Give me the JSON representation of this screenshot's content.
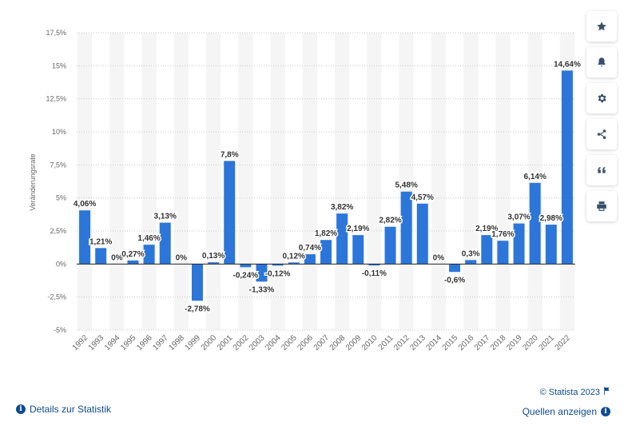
{
  "chart_data": {
    "type": "bar",
    "ylabel": "Veränderungsrate",
    "ylim": [
      -5,
      17.5
    ],
    "yticks": [
      -5,
      -2.5,
      0,
      2.5,
      5,
      7.5,
      10,
      12.5,
      15,
      17.5
    ],
    "ytick_labels": [
      "-5%",
      "-2,5%",
      "0%",
      "2,5%",
      "5%",
      "7,5%",
      "10%",
      "12,5%",
      "15%",
      "17,5%"
    ],
    "grid": true,
    "bar_color": "#2c76d9",
    "categories": [
      "1992",
      "1993",
      "1994",
      "1995",
      "1996",
      "1997",
      "1998",
      "1999",
      "2000",
      "2001",
      "2002",
      "2003",
      "2004",
      "2005",
      "2006",
      "2007",
      "2008",
      "2009",
      "2010",
      "2011",
      "2012",
      "2013",
      "2014",
      "2015",
      "2016",
      "2017",
      "2018",
      "2019",
      "2020",
      "2021",
      "2022"
    ],
    "values": [
      4.06,
      1.21,
      0,
      0.27,
      1.46,
      3.13,
      0,
      -2.78,
      0.13,
      7.8,
      -0.24,
      -1.33,
      -0.12,
      0.12,
      0.74,
      1.82,
      3.82,
      2.19,
      -0.11,
      2.82,
      5.48,
      4.57,
      0,
      -0.6,
      0.3,
      2.19,
      1.76,
      3.07,
      6.14,
      2.98,
      14.64
    ],
    "value_labels": [
      "4,06%",
      "1,21%",
      "0%",
      "0,27%",
      "1,46%",
      "3,13%",
      "0%",
      "-2,78%",
      "0,13%",
      "7,8%",
      "-0,24%",
      "-1,33%",
      "-0,12%",
      "0,12%",
      "0,74%",
      "1,82%",
      "3,82%",
      "2,19%",
      "-0,11%",
      "2,82%",
      "5,48%",
      "4,57%",
      "0%",
      "-0,6%",
      "0,3%",
      "2,19%",
      "1,76%",
      "3,07%",
      "6,14%",
      "2,98%",
      "14,64%"
    ]
  },
  "sidebar": {
    "buttons": [
      {
        "icon": "star-icon"
      },
      {
        "icon": "bell-icon"
      },
      {
        "icon": "gear-icon"
      },
      {
        "icon": "share-icon"
      },
      {
        "icon": "quote-icon"
      },
      {
        "icon": "print-icon"
      }
    ]
  },
  "footer": {
    "details_label": "Details zur Statistik",
    "copyright": "© Statista 2023",
    "sources_label": "Quellen anzeigen"
  }
}
